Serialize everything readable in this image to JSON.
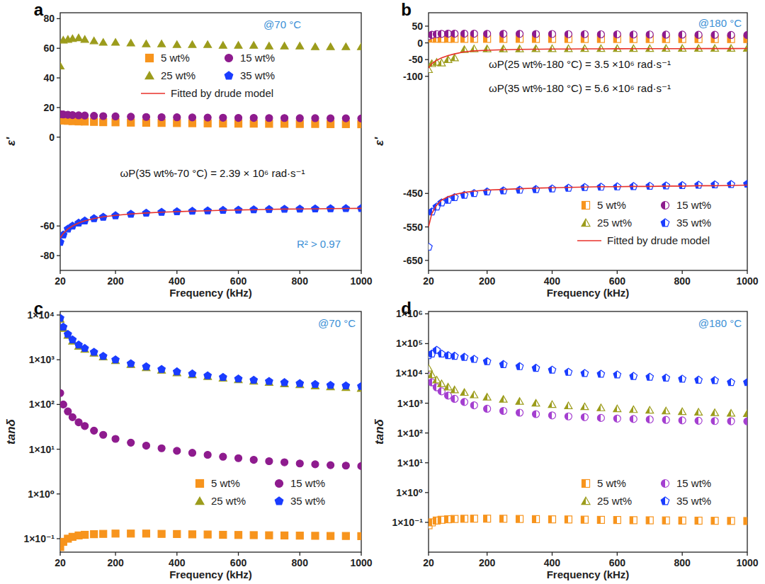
{
  "chart_data": [
    {
      "type": "scatter",
      "title": "a",
      "x_label": "Frequency (kHz)",
      "y_label": "ε'",
      "x": [
        20,
        30,
        45,
        60,
        80,
        100,
        130,
        160,
        200,
        250,
        300,
        350,
        400,
        450,
        500,
        550,
        600,
        650,
        700,
        750,
        800,
        850,
        900,
        950,
        1000
      ],
      "xlim": [
        20,
        1000
      ],
      "xticks": [
        20,
        200,
        400,
        600,
        800,
        1000
      ],
      "ylim": [
        -90,
        84
      ],
      "yticks": [
        -80,
        -60,
        0,
        20,
        40,
        60,
        80
      ],
      "grid": false,
      "legend": "upper center",
      "annotations": [
        "@70 °C",
        "ωP(35 wt%-70 °C) = 2.39 × 10⁶ rad·s⁻¹",
        "R² > 0.97"
      ],
      "series": [
        {
          "name": "5 wt%",
          "color": "#f7941d",
          "marker": "square",
          "values": [
            11.5,
            11.2,
            11,
            10.8,
            10.6,
            10.5,
            10.3,
            10.1,
            10,
            9.8,
            9.7,
            9.6,
            9.5,
            9.4,
            9.3,
            9.2,
            9.1,
            9.1,
            9,
            9,
            8.9,
            8.9,
            8.8,
            8.8,
            8.7
          ]
        },
        {
          "name": "15 wt%",
          "color": "#8e1b8e",
          "marker": "circle",
          "values": [
            15.5,
            15.3,
            15.1,
            14.9,
            14.7,
            14.6,
            14.4,
            14.2,
            14,
            13.8,
            13.6,
            13.5,
            13.4,
            13.3,
            13.2,
            13.1,
            13,
            13,
            12.9,
            12.9,
            12.8,
            12.8,
            12.7,
            12.7,
            12.6
          ]
        },
        {
          "name": "25 wt%",
          "color": "#9c9c1c",
          "marker": "triangle",
          "values": [
            48,
            65.5,
            66,
            66.5,
            67,
            66,
            65,
            64,
            64,
            63.5,
            63,
            63,
            62.5,
            62.5,
            62.5,
            62,
            62,
            62,
            61.5,
            61.5,
            61.5,
            61,
            61,
            61,
            61
          ]
        },
        {
          "name": "35 wt%",
          "color": "#1a3cff",
          "marker": "pentagon",
          "values": [
            -71,
            -66,
            -62,
            -60,
            -58,
            -56.5,
            -55,
            -54,
            -53,
            -52,
            -51.3,
            -50.7,
            -50.3,
            -50,
            -49.7,
            -49.4,
            -49.2,
            -49,
            -48.8,
            -48.6,
            -48.5,
            -48.4,
            -48.3,
            -48.2,
            -48.1
          ]
        },
        {
          "name": "Fitted by drude model",
          "type": "line",
          "line_style": "solid",
          "color": "#e8312a",
          "values": [
            -68,
            -65,
            -62,
            -60,
            -58,
            -56.5,
            -55,
            -53.8,
            -52.8,
            -51.9,
            -51.2,
            -50.7,
            -50.3,
            -50,
            -49.7,
            -49.4,
            -49.2,
            -49,
            -48.8,
            -48.6,
            -48.5,
            -48.4,
            -48.3,
            -48.2,
            -48.1
          ]
        }
      ]
    },
    {
      "type": "scatter",
      "title": "b",
      "x_label": "Frequency (kHz)",
      "y_label": "ε'",
      "x": [
        20,
        30,
        45,
        60,
        80,
        100,
        130,
        160,
        200,
        250,
        300,
        350,
        400,
        450,
        500,
        550,
        600,
        650,
        700,
        750,
        800,
        850,
        900,
        950,
        1000
      ],
      "xlim": [
        20,
        1000
      ],
      "xticks": [
        20,
        200,
        400,
        600,
        800,
        1000
      ],
      "ylim": [
        -680,
        90
      ],
      "yticks": [
        -650,
        -550,
        -450,
        -100,
        -50,
        0,
        50
      ],
      "grid": false,
      "legend": "lower right",
      "annotations": [
        "@180 °C",
        "ωP(25 wt%-180 °C) = 3.5 ×10⁶ rad·s⁻¹",
        "ωP(35 wt%-180 °C) = 5.6 ×10⁶ rad·s⁻¹"
      ],
      "series": [
        {
          "name": "5 wt%",
          "color": "#f7941d",
          "marker": "half-square",
          "values": [
            13,
            12.6,
            12.4,
            12.3,
            12.2,
            12.1,
            12,
            12,
            12,
            11.9,
            11.9,
            11.8,
            11.8,
            11.7,
            11.7,
            11.6,
            11.6,
            11.5,
            11.5,
            11.5,
            11.4,
            11.4,
            11.4,
            11.3,
            11.3
          ]
        },
        {
          "name": "15 wt%",
          "color": "#8e1b8e",
          "marker": "half-circle",
          "values": [
            20,
            24,
            26,
            27,
            27.5,
            27.5,
            27.5,
            27.5,
            27,
            27,
            27,
            26.5,
            26.5,
            26,
            26,
            25.5,
            25.5,
            25,
            25,
            24.5,
            24.5,
            24,
            24,
            23.5,
            23.5
          ]
        },
        {
          "name": "25 wt%",
          "color": "#9c9c1c",
          "marker": "half-triangle",
          "values": [
            -80,
            -62,
            -58,
            -60,
            -50,
            -45,
            -20,
            -18,
            -18,
            -18,
            -18,
            -17.5,
            -17.5,
            -17.5,
            -17,
            -17,
            -17,
            -17,
            -17,
            -16.5,
            -16.5,
            -16.5,
            -16.5,
            -16.5,
            -16.5
          ]
        },
        {
          "name": "35 wt%",
          "color": "#1a3cff",
          "marker": "half-pentagon",
          "values": [
            -610,
            -505,
            -490,
            -478,
            -470,
            -462,
            -455,
            -450,
            -445,
            -442,
            -440,
            -438,
            -436,
            -434,
            -432,
            -431,
            -430,
            -429,
            -428,
            -427,
            -426,
            -425,
            -424,
            -423,
            -422
          ]
        },
        {
          "name": "Fitted by drude model",
          "type": "line",
          "line_style": "solid",
          "color": "#e8312a",
          "values": [
            -75,
            -62,
            -52,
            -45,
            -38,
            -33,
            -27,
            -24,
            -22,
            -20.5,
            -19.5,
            -19,
            -18.5,
            -18.3,
            -18,
            -17.8,
            -17.6,
            -17.5,
            -17.4,
            -17.3,
            -17.2,
            -17.1,
            -17,
            -17,
            -16.9
          ]
        },
        {
          "type": "line",
          "line_style": "solid",
          "color": "#e8312a",
          "values": [
            -550,
            -510,
            -485,
            -470,
            -460,
            -453,
            -447,
            -443,
            -440,
            -438,
            -436,
            -434,
            -433,
            -432,
            -431,
            -430,
            -430,
            -429,
            -429,
            -428,
            -428,
            -427,
            -427,
            -426,
            -425
          ]
        }
      ]
    },
    {
      "type": "scatter",
      "title": "c",
      "x_label": "Frequency (kHz)",
      "y_label": "tanδ",
      "x": [
        20,
        30,
        45,
        60,
        80,
        100,
        130,
        160,
        200,
        250,
        300,
        350,
        400,
        450,
        500,
        550,
        600,
        650,
        700,
        750,
        800,
        850,
        900,
        950,
        1000
      ],
      "xlim": [
        20,
        1000
      ],
      "xticks": [
        20,
        200,
        400,
        600,
        800,
        1000
      ],
      "ylim": [
        0.05,
        12000
      ],
      "log": "y",
      "yticks": [
        {
          "value": 0.1,
          "label": "1×10⁻¹"
        },
        {
          "value": 1,
          "label": "1×10⁰"
        },
        {
          "value": 10,
          "label": "1×10¹"
        },
        {
          "value": 100,
          "label": "1×10²"
        },
        {
          "value": 1000,
          "label": "1×10³"
        },
        {
          "value": 10000,
          "label": "1×10⁴"
        }
      ],
      "grid": false,
      "legend": "lower right",
      "annotations": [
        "@70 °C"
      ],
      "series": [
        {
          "name": "5 wt%",
          "color": "#f7941d",
          "marker": "square",
          "values": [
            0.065,
            0.085,
            0.1,
            0.11,
            0.118,
            0.122,
            0.126,
            0.128,
            0.13,
            0.13,
            0.13,
            0.128,
            0.127,
            0.125,
            0.124,
            0.122,
            0.121,
            0.12,
            0.119,
            0.118,
            0.117,
            0.116,
            0.115,
            0.115,
            0.114
          ]
        },
        {
          "name": "15 wt%",
          "color": "#8e1b8e",
          "marker": "circle",
          "values": [
            180,
            100,
            70,
            52,
            40,
            33,
            26,
            21,
            17,
            14,
            12,
            10.5,
            9.2,
            8.3,
            7.5,
            6.8,
            6.3,
            5.8,
            5.4,
            5.1,
            4.8,
            4.6,
            4.4,
            4.3,
            4.2
          ]
        },
        {
          "name": "25 wt%",
          "color": "#9c9c1c",
          "marker": "triangle",
          "values": [
            8000,
            5000,
            3500,
            2600,
            2000,
            1700,
            1400,
            1150,
            950,
            780,
            660,
            580,
            510,
            460,
            420,
            385,
            355,
            330,
            310,
            290,
            275,
            260,
            248,
            238,
            228
          ]
        },
        {
          "name": "35 wt%",
          "color": "#1a3cff",
          "marker": "pentagon",
          "values": [
            8500,
            5400,
            3700,
            2800,
            2150,
            1800,
            1480,
            1200,
            1000,
            820,
            700,
            610,
            540,
            485,
            440,
            405,
            375,
            350,
            330,
            310,
            295,
            282,
            270,
            262,
            255
          ]
        }
      ]
    },
    {
      "type": "scatter",
      "title": "d",
      "x_label": "Frequency (kHz)",
      "y_label": "tanδ",
      "x": [
        20,
        30,
        45,
        60,
        80,
        100,
        130,
        160,
        200,
        250,
        300,
        350,
        400,
        450,
        500,
        550,
        600,
        650,
        700,
        750,
        800,
        850,
        900,
        950,
        1000
      ],
      "xlim": [
        20,
        1000
      ],
      "xticks": [
        20,
        200,
        400,
        600,
        800,
        1000
      ],
      "ylim": [
        0.01,
        1200000
      ],
      "log": "y",
      "yticks": [
        {
          "value": 0.1,
          "label": "1×10⁻¹"
        },
        {
          "value": 1,
          "label": "1×10⁰"
        },
        {
          "value": 10,
          "label": "1×10¹"
        },
        {
          "value": 100,
          "label": "1×10²"
        },
        {
          "value": 1000,
          "label": "1×10³"
        },
        {
          "value": 10000,
          "label": "1×10⁴"
        },
        {
          "value": 100000,
          "label": "1×10⁵"
        },
        {
          "value": 1000000,
          "label": "1×10⁶"
        }
      ],
      "grid": false,
      "legend": "lower right",
      "annotations": [
        "@180 °C"
      ],
      "series": [
        {
          "name": "5 wt%",
          "color": "#f7941d",
          "marker": "half-square",
          "values": [
            0.08,
            0.1,
            0.115,
            0.122,
            0.127,
            0.13,
            0.132,
            0.133,
            0.133,
            0.132,
            0.13,
            0.128,
            0.126,
            0.125,
            0.123,
            0.121,
            0.12,
            0.118,
            0.117,
            0.116,
            0.115,
            0.114,
            0.113,
            0.112,
            0.111
          ]
        },
        {
          "name": "15 wt%",
          "color": "#a43fd0",
          "marker": "half-circle",
          "values": [
            8000,
            5000,
            3400,
            2500,
            1800,
            1400,
            1100,
            850,
            650,
            550,
            480,
            430,
            390,
            360,
            340,
            320,
            305,
            295,
            285,
            275,
            265,
            258,
            252,
            248,
            245
          ]
        },
        {
          "name": "25 wt%",
          "color": "#9c9c1c",
          "marker": "half-triangle",
          "values": [
            15000,
            9000,
            6000,
            4500,
            3500,
            2800,
            2300,
            1900,
            1600,
            1350,
            1150,
            1000,
            900,
            820,
            760,
            700,
            650,
            610,
            580,
            550,
            520,
            500,
            480,
            460,
            450
          ]
        },
        {
          "name": "35 wt%",
          "color": "#1a3cff",
          "marker": "half-pentagon",
          "values": [
            40000,
            45000,
            60000,
            45000,
            40000,
            38000,
            35000,
            30000,
            25000,
            20000,
            17000,
            15000,
            13000,
            11000,
            10000,
            9500,
            9000,
            8000,
            7500,
            7000,
            6500,
            6000,
            5800,
            5000,
            5000
          ]
        }
      ]
    }
  ]
}
